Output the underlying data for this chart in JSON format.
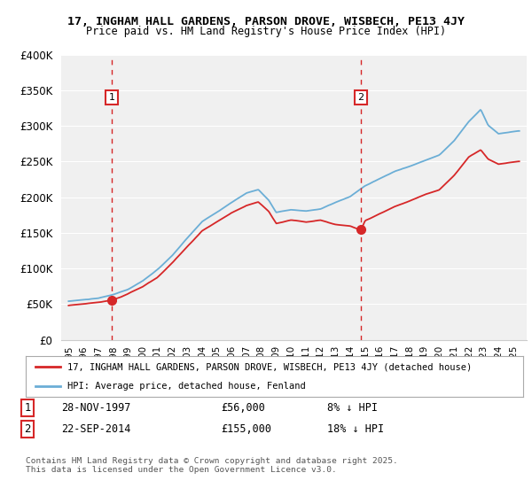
{
  "title_line1": "17, INGHAM HALL GARDENS, PARSON DROVE, WISBECH, PE13 4JY",
  "title_line2": "Price paid vs. HM Land Registry's House Price Index (HPI)",
  "background_color": "#ffffff",
  "plot_bg_color": "#f0f0f0",
  "grid_color": "#ffffff",
  "hpi_color": "#6baed6",
  "price_color": "#d62728",
  "marker_color": "#d62728",
  "sale1_date_label": "28-NOV-1997",
  "sale1_price": 56000,
  "sale1_pct": "8% ↓ HPI",
  "sale2_date_label": "22-SEP-2014",
  "sale2_price": 155000,
  "sale2_pct": "18% ↓ HPI",
  "legend_entry1": "17, INGHAM HALL GARDENS, PARSON DROVE, WISBECH, PE13 4JY (detached house)",
  "legend_entry2": "HPI: Average price, detached house, Fenland",
  "footnote": "Contains HM Land Registry data © Crown copyright and database right 2025.\nThis data is licensed under the Open Government Licence v3.0.",
  "ylim": [
    0,
    400000
  ],
  "yticks": [
    0,
    50000,
    100000,
    150000,
    200000,
    250000,
    300000,
    350000,
    400000
  ],
  "ytick_labels": [
    "£0",
    "£50K",
    "£100K",
    "£150K",
    "£200K",
    "£250K",
    "£300K",
    "£350K",
    "£400K"
  ],
  "sale1_year": 1997.91,
  "sale2_year": 2014.72,
  "hpi_keypoints": [
    [
      1995.0,
      54000
    ],
    [
      1996.0,
      56000
    ],
    [
      1997.0,
      58000
    ],
    [
      1998.0,
      63000
    ],
    [
      1999.0,
      70000
    ],
    [
      2000.0,
      82000
    ],
    [
      2001.0,
      98000
    ],
    [
      2002.0,
      118000
    ],
    [
      2003.0,
      142000
    ],
    [
      2004.0,
      165000
    ],
    [
      2005.0,
      178000
    ],
    [
      2006.0,
      192000
    ],
    [
      2007.0,
      205000
    ],
    [
      2007.8,
      210000
    ],
    [
      2008.5,
      195000
    ],
    [
      2009.0,
      178000
    ],
    [
      2010.0,
      182000
    ],
    [
      2011.0,
      180000
    ],
    [
      2012.0,
      183000
    ],
    [
      2013.0,
      192000
    ],
    [
      2014.0,
      200000
    ],
    [
      2015.0,
      215000
    ],
    [
      2016.0,
      225000
    ],
    [
      2017.0,
      235000
    ],
    [
      2018.0,
      242000
    ],
    [
      2019.0,
      250000
    ],
    [
      2020.0,
      258000
    ],
    [
      2021.0,
      278000
    ],
    [
      2022.0,
      305000
    ],
    [
      2022.8,
      322000
    ],
    [
      2023.3,
      300000
    ],
    [
      2024.0,
      288000
    ],
    [
      2025.3,
      292000
    ]
  ],
  "price_keypoints": [
    [
      1995.0,
      48000
    ],
    [
      1996.0,
      50000
    ],
    [
      1997.0,
      53000
    ],
    [
      1997.91,
      56000
    ],
    [
      1998.5,
      60000
    ],
    [
      1999.0,
      65000
    ],
    [
      2000.0,
      75000
    ],
    [
      2001.0,
      88000
    ],
    [
      2002.0,
      108000
    ],
    [
      2003.0,
      130000
    ],
    [
      2004.0,
      152000
    ],
    [
      2005.0,
      165000
    ],
    [
      2006.0,
      178000
    ],
    [
      2007.0,
      188000
    ],
    [
      2007.8,
      193000
    ],
    [
      2008.5,
      180000
    ],
    [
      2009.0,
      163000
    ],
    [
      2010.0,
      168000
    ],
    [
      2011.0,
      165000
    ],
    [
      2012.0,
      168000
    ],
    [
      2013.0,
      162000
    ],
    [
      2014.0,
      160000
    ],
    [
      2014.72,
      155000
    ],
    [
      2015.0,
      168000
    ],
    [
      2016.0,
      178000
    ],
    [
      2017.0,
      188000
    ],
    [
      2018.0,
      196000
    ],
    [
      2019.0,
      205000
    ],
    [
      2020.0,
      212000
    ],
    [
      2021.0,
      232000
    ],
    [
      2022.0,
      258000
    ],
    [
      2022.8,
      268000
    ],
    [
      2023.3,
      255000
    ],
    [
      2024.0,
      248000
    ],
    [
      2025.3,
      252000
    ]
  ]
}
